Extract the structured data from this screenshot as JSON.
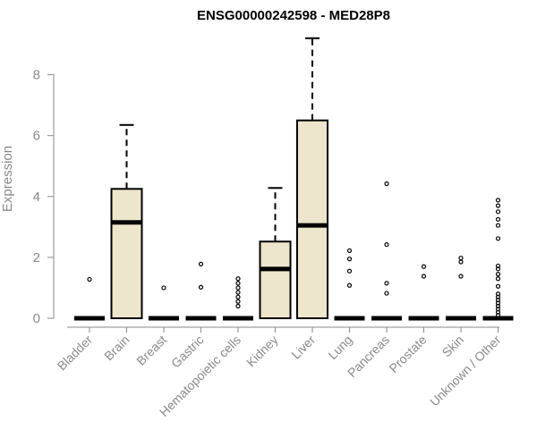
{
  "chart_data": {
    "type": "boxplot",
    "title": "ENSG00000242598 - MED28P8",
    "xlabel": "",
    "ylabel": "Expression",
    "ylim": [
      0,
      9.3
    ],
    "yticks": [
      0,
      2,
      4,
      6,
      8
    ],
    "grid": false,
    "legend": "none",
    "colors": {
      "box_fill": "#ede6cc",
      "box_stroke": "#000000",
      "axis": "#8a8a8a",
      "label": "#8a8a8a"
    },
    "categories": [
      "Bladder",
      "Brain",
      "Breast",
      "Gastric",
      "Hematopoietic cells",
      "Kidney",
      "Liver",
      "Lung",
      "Pancreas",
      "Prostate",
      "Skin",
      "Unknown / Other"
    ],
    "boxes": [
      {
        "category": "Bladder",
        "min": 0,
        "q1": 0,
        "median": 0,
        "q3": 0,
        "max": 0,
        "outliers": [
          1.28
        ]
      },
      {
        "category": "Brain",
        "min": 0,
        "q1": 0,
        "median": 3.15,
        "q3": 4.25,
        "max": 6.35,
        "outliers": []
      },
      {
        "category": "Breast",
        "min": 0,
        "q1": 0,
        "median": 0,
        "q3": 0,
        "max": 0,
        "outliers": [
          1.0
        ]
      },
      {
        "category": "Gastric",
        "min": 0,
        "q1": 0,
        "median": 0,
        "q3": 0,
        "max": 0,
        "outliers": [
          1.02,
          1.78
        ]
      },
      {
        "category": "Hematopoietic cells",
        "min": 0,
        "q1": 0,
        "median": 0,
        "q3": 0,
        "max": 0,
        "outliers": [
          0.4,
          0.55,
          0.7,
          0.85,
          1.0,
          1.15,
          1.3
        ]
      },
      {
        "category": "Kidney",
        "min": 0,
        "q1": 0,
        "median": 1.62,
        "q3": 2.52,
        "max": 4.28,
        "outliers": []
      },
      {
        "category": "Liver",
        "min": 0,
        "q1": 0,
        "median": 3.05,
        "q3": 6.5,
        "max": 9.2,
        "outliers": []
      },
      {
        "category": "Lung",
        "min": 0,
        "q1": 0,
        "median": 0,
        "q3": 0,
        "max": 0,
        "outliers": [
          1.08,
          1.55,
          1.95,
          2.22
        ]
      },
      {
        "category": "Pancreas",
        "min": 0,
        "q1": 0,
        "median": 0,
        "q3": 0,
        "max": 0,
        "outliers": [
          0.82,
          1.15,
          2.42,
          4.42
        ]
      },
      {
        "category": "Prostate",
        "min": 0,
        "q1": 0,
        "median": 0,
        "q3": 0,
        "max": 0,
        "outliers": [
          1.38,
          1.7
        ]
      },
      {
        "category": "Skin",
        "min": 0,
        "q1": 0,
        "median": 0,
        "q3": 0,
        "max": 0,
        "outliers": [
          1.38,
          1.85,
          1.98
        ]
      },
      {
        "category": "Unknown / Other",
        "min": 0,
        "q1": 0,
        "median": 0,
        "q3": 0,
        "max": 0,
        "outliers": [
          0.1,
          0.2,
          0.3,
          0.4,
          0.5,
          0.6,
          0.7,
          0.8,
          1.05,
          1.3,
          1.45,
          1.62,
          1.72,
          2.62,
          3.05,
          3.25,
          3.5,
          3.7,
          3.88
        ]
      }
    ]
  }
}
